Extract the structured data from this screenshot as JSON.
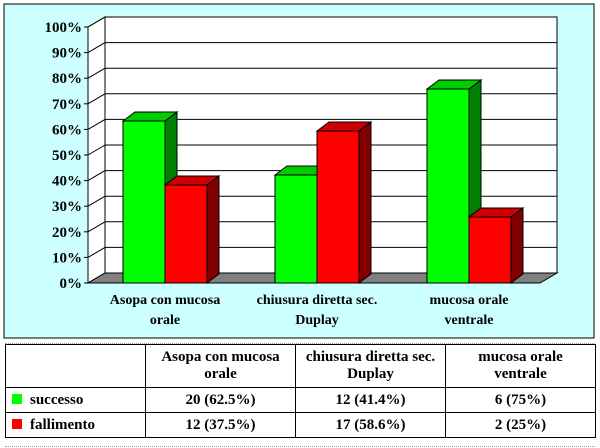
{
  "chart_data": {
    "type": "bar",
    "categories": [
      "Asopa con mucosa orale",
      "chiusura diretta sec. Duplay",
      "mucosa orale ventrale"
    ],
    "category_lines": [
      [
        "Asopa con mucosa",
        "orale"
      ],
      [
        "chiusura diretta sec.",
        "Duplay"
      ],
      [
        "mucosa orale",
        "ventrale"
      ]
    ],
    "series": [
      {
        "name": "successo",
        "values": [
          62.5,
          41.4,
          75
        ],
        "color": "#00ff00",
        "labels": [
          "20 (62.5%)",
          "12 (41.4%)",
          "6 (75%)"
        ]
      },
      {
        "name": "fallimento",
        "values": [
          37.5,
          58.6,
          25
        ],
        "color": "#ff0000",
        "labels": [
          "12 (37.5%)",
          "17 (58.6%)",
          "2 (25%)"
        ]
      }
    ],
    "ylim": [
      0,
      100
    ],
    "y_ticks": [
      "0%",
      "10%",
      "20%",
      "30%",
      "40%",
      "50%",
      "60%",
      "70%",
      "80%",
      "90%",
      "100%"
    ],
    "grid": true,
    "legend": "table",
    "chart_background": "#ccffff",
    "floor_color": "#808080"
  },
  "table": {
    "headers": [
      [
        "Asopa con mucosa",
        "orale"
      ],
      [
        "chiusura diretta sec.",
        "Duplay"
      ],
      [
        "mucosa orale",
        "ventrale"
      ]
    ]
  }
}
